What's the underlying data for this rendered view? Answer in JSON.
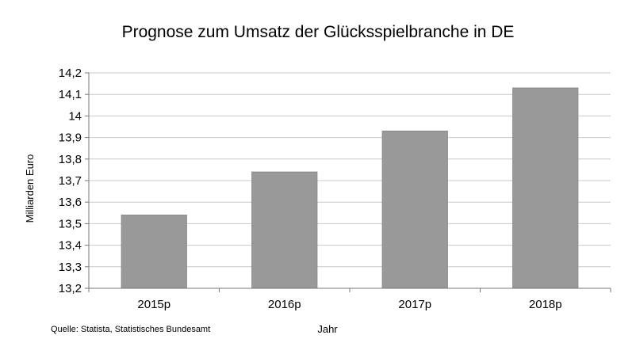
{
  "chart_data": {
    "type": "bar",
    "title": "Prognose zum Umsatz der Glücksspielbranche in DE",
    "xlabel": "Jahr",
    "ylabel": "Milliarden Euro",
    "categories": [
      "2015p",
      "2016p",
      "2017p",
      "2018p"
    ],
    "values": [
      13.54,
      13.74,
      13.93,
      14.13
    ],
    "ylim": [
      13.2,
      14.2
    ],
    "yticks": [
      13.2,
      13.3,
      13.4,
      13.5,
      13.6,
      13.7,
      13.8,
      13.9,
      14.0,
      14.1,
      14.2
    ],
    "ytick_labels": [
      "13,2",
      "13,3",
      "13,4",
      "13,5",
      "13,6",
      "13,7",
      "13,8",
      "13,9",
      "14",
      "14,1",
      "14,2"
    ],
    "grid": true,
    "legend": "none",
    "bar_color": "#999999",
    "grid_color": "#c8c8c8"
  },
  "source": "Quelle: Statista, Statistisches Bundesamt"
}
